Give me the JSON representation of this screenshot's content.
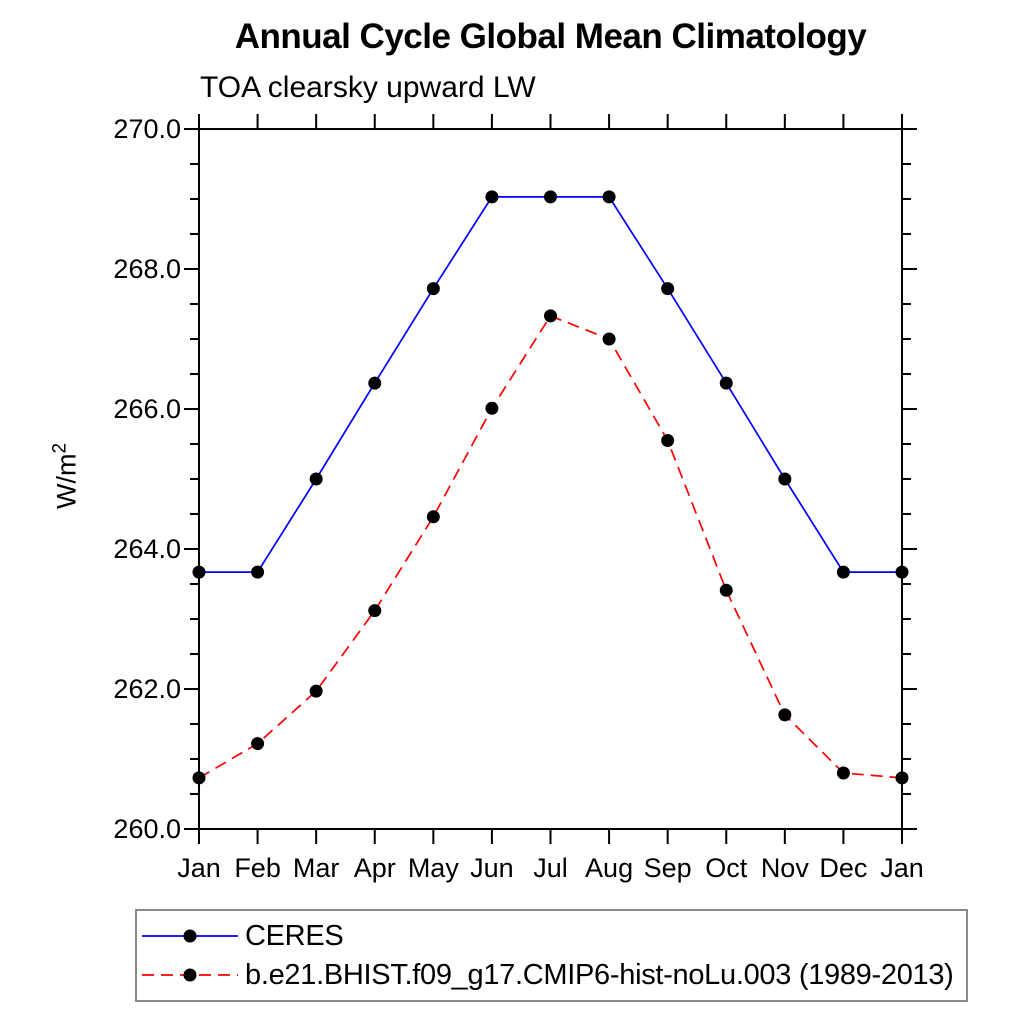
{
  "title": "Annual Cycle Global Mean Climatology",
  "subtitle": "TOA clearsky upward LW",
  "ylabel": {
    "text": "W/m",
    "sup": "2"
  },
  "chart_data": {
    "type": "line",
    "x_categories": [
      "Jan",
      "Feb",
      "Mar",
      "Apr",
      "May",
      "Jun",
      "Jul",
      "Aug",
      "Sep",
      "Oct",
      "Nov",
      "Dec",
      "Jan"
    ],
    "series": [
      {
        "name": "CERES",
        "color": "#0000ff",
        "line_style": "solid",
        "marker": "black-dot",
        "values": [
          263.67,
          263.67,
          265.0,
          266.37,
          267.72,
          269.03,
          269.03,
          269.03,
          267.72,
          266.37,
          265.0,
          263.67,
          263.67
        ]
      },
      {
        "name": "b.e21.BHIST.f09_g17.CMIP6-hist-noLu.003 (1989-2013)",
        "color": "#ff0000",
        "line_style": "dashed",
        "marker": "black-dot",
        "values": [
          260.73,
          261.22,
          261.97,
          263.12,
          264.46,
          266.01,
          267.33,
          267.0,
          265.55,
          263.41,
          261.63,
          260.8,
          260.73
        ]
      }
    ],
    "xlabel": "",
    "ylabel": "W/m2",
    "ylim": [
      260.0,
      270.0
    ],
    "y_major_ticks": [
      260.0,
      262.0,
      264.0,
      266.0,
      268.0,
      270.0
    ],
    "y_minor_step": 0.5,
    "y_tick_labels": [
      "260.0",
      "262.0",
      "264.0",
      "266.0",
      "268.0",
      "270.0"
    ],
    "grid": false,
    "legend_position": "bottom-left-box",
    "marker_color": "#000000",
    "axis_color": "#000000"
  }
}
